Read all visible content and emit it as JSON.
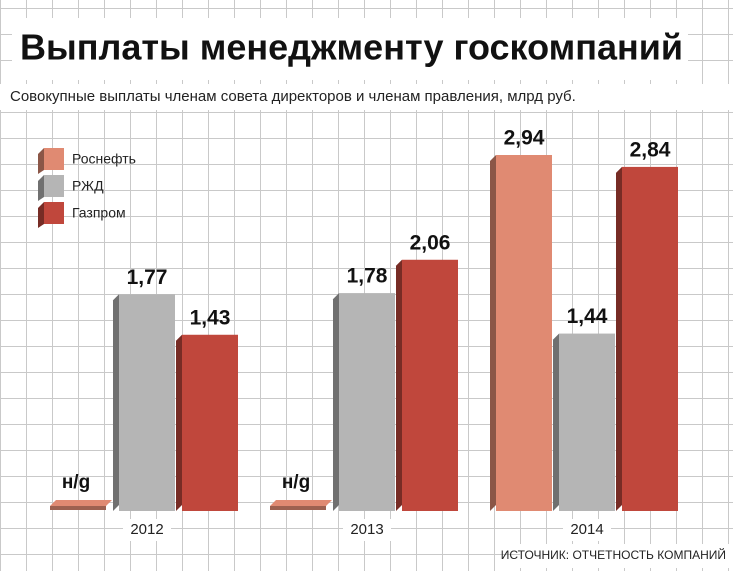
{
  "chart_data": {
    "type": "bar",
    "title": "Выплаты менеджменту госкомпаний",
    "subtitle": "Совокупные выплаты членам совета директоров и членам правления, млрд руб.",
    "source": "ИСТОЧНИК: ОТЧЕТНОСТЬ КОМПАНИЙ",
    "categories": [
      "2012",
      "2013",
      "2014"
    ],
    "series": [
      {
        "name": "Роснефть",
        "color": "#e08a72",
        "values": [
          null,
          null,
          2.94
        ],
        "value_labels": [
          "н/g",
          "н/g",
          "2,94"
        ]
      },
      {
        "name": "РЖД",
        "color": "#b5b5b5",
        "values": [
          1.77,
          1.78,
          1.44
        ],
        "value_labels": [
          "1,77",
          "1,78",
          "1,44"
        ]
      },
      {
        "name": "Газпром",
        "color": "#c0473c",
        "values": [
          1.43,
          2.06,
          2.84
        ],
        "value_labels": [
          "1,43",
          "2,06",
          "2,84"
        ]
      }
    ],
    "legend": "top-left"
  }
}
